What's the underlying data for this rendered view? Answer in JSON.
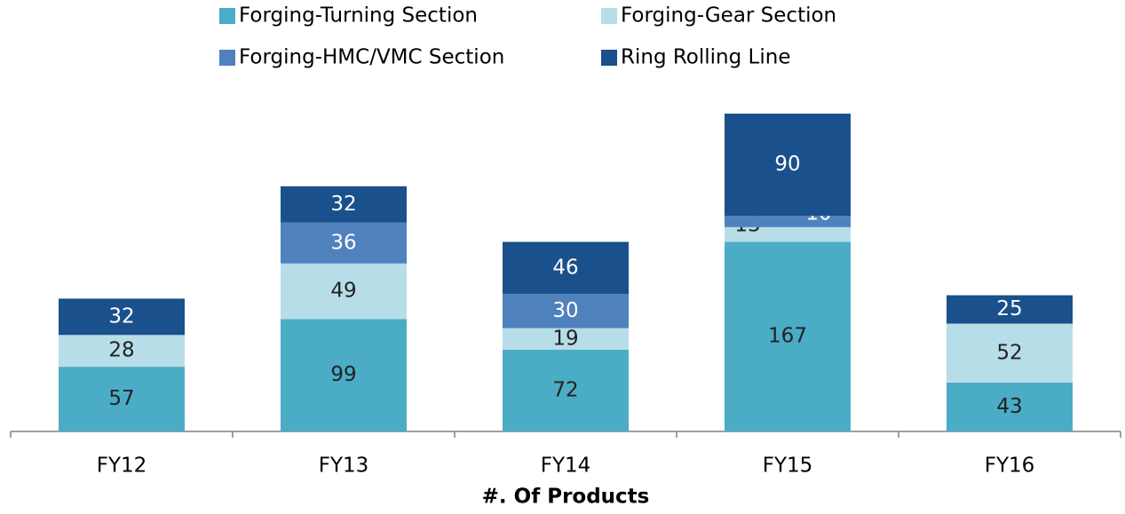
{
  "chart_data": {
    "type": "stacked_bar",
    "x_label": "#. Of Products",
    "categories": [
      "FY12",
      "FY13",
      "FY14",
      "FY15",
      "FY16"
    ],
    "series": [
      {
        "name": "Forging-Turning Section",
        "color": "#4bacc6",
        "values": [
          57,
          99,
          72,
          167,
          43
        ]
      },
      {
        "name": "Forging-Gear Section",
        "color": "#b7dde8",
        "values": [
          28,
          49,
          19,
          13,
          52
        ]
      },
      {
        "name": "Forging-HMC/VMC Section",
        "color": "#4f81bd",
        "values": [
          null,
          36,
          30,
          10,
          null
        ]
      },
      {
        "name": "Ring Rolling Line",
        "color": "#1a508b",
        "values": [
          32,
          32,
          46,
          90,
          25
        ]
      }
    ]
  }
}
